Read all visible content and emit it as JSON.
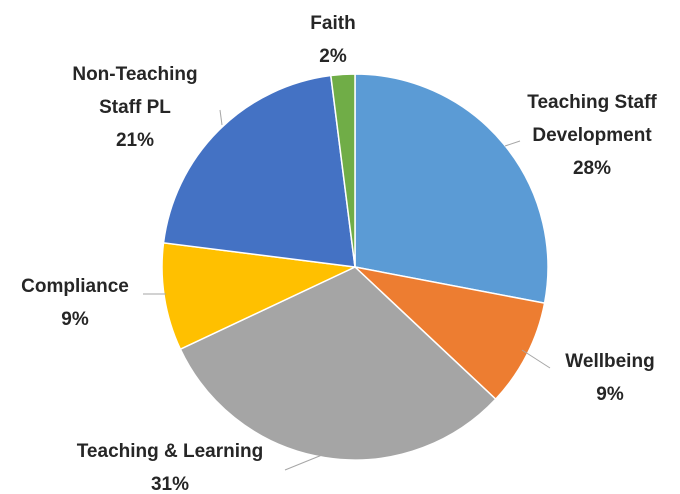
{
  "chart_data": {
    "type": "pie",
    "categories": [
      "Teaching Staff Development",
      "Wellbeing",
      "Teaching & Learning",
      "Compliance",
      "Non-Teaching Staff PL",
      "Faith"
    ],
    "values": [
      28,
      9,
      31,
      9,
      21,
      2
    ],
    "value_labels": [
      "28%",
      "9%",
      "31%",
      "9%",
      "21%",
      "2%"
    ],
    "colors": [
      "#5b9bd5",
      "#ed7d31",
      "#a5a5a5",
      "#ffc000",
      "#4472c4",
      "#70ad47"
    ]
  }
}
